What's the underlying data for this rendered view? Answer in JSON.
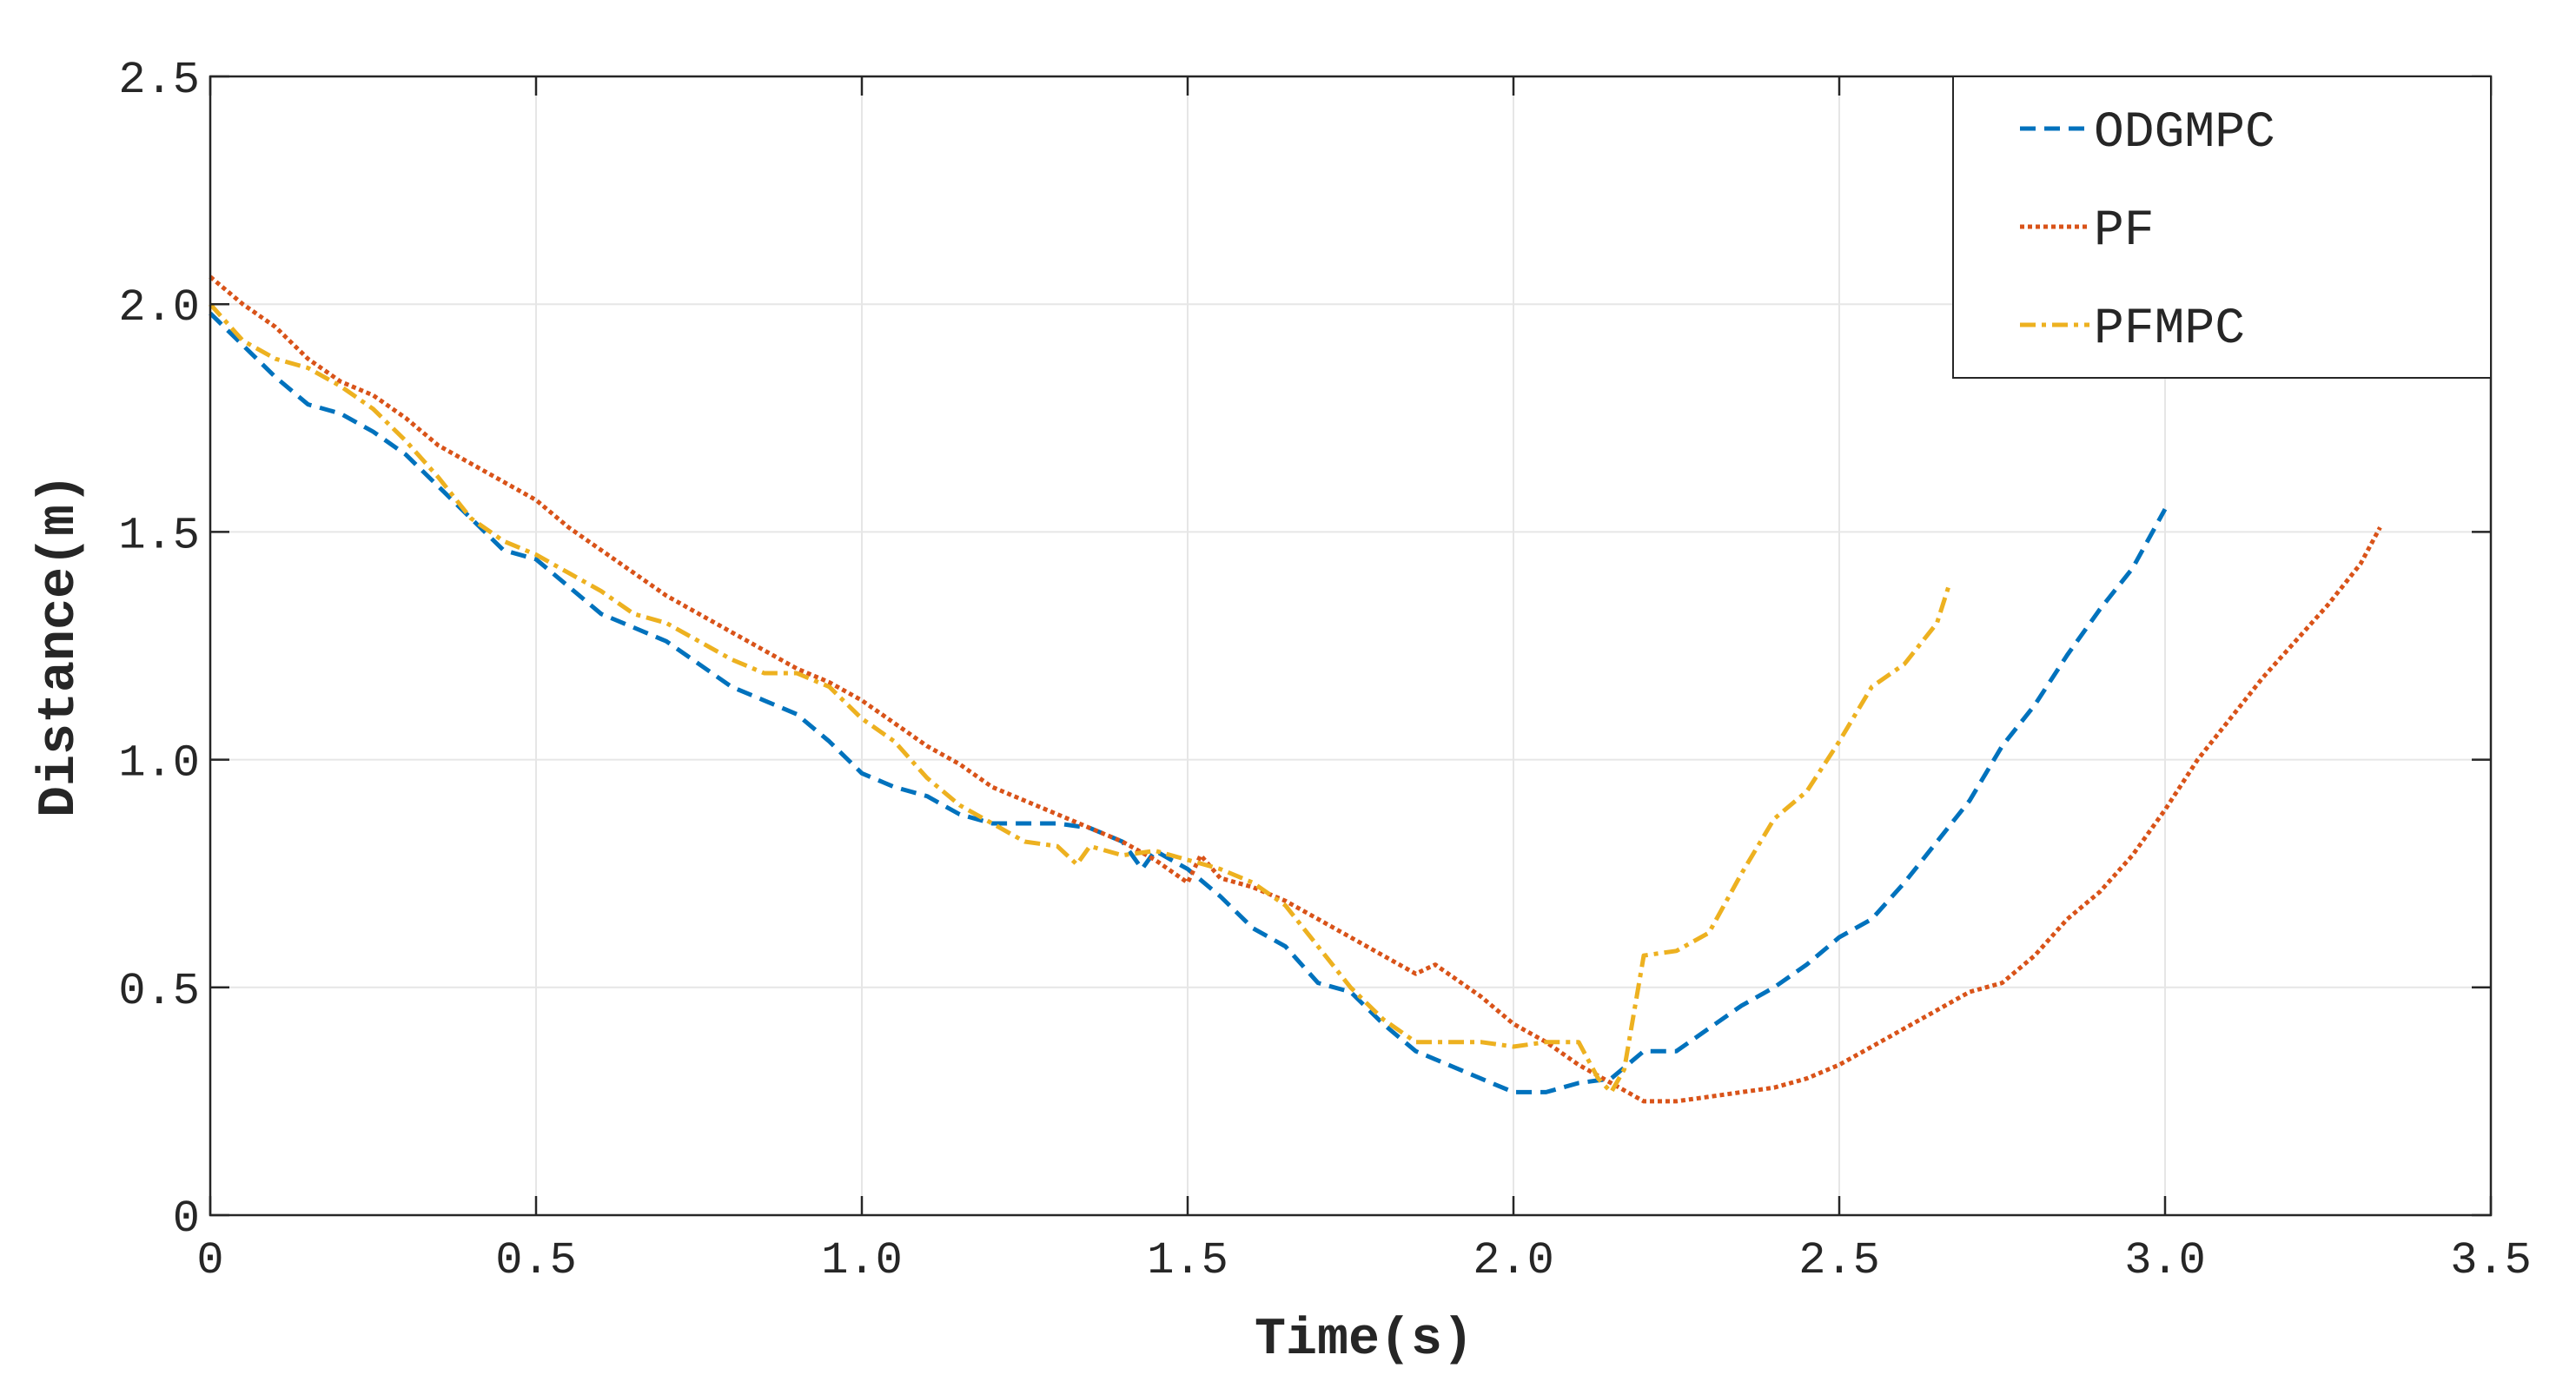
{
  "chart_data": {
    "type": "line",
    "title": "",
    "xlabel": "Time(s)",
    "ylabel": "Distance(m)",
    "xlim": [
      0,
      3.5
    ],
    "ylim": [
      0,
      2.5
    ],
    "xticks": [
      0,
      0.5,
      1.0,
      1.5,
      2.0,
      2.5,
      3.0,
      3.5
    ],
    "xtick_labels": [
      "0",
      "0.5",
      "1.0",
      "1.5",
      "2.0",
      "2.5",
      "3.0",
      "3.5"
    ],
    "yticks": [
      0,
      0.5,
      1.0,
      1.5,
      2.0,
      2.5
    ],
    "ytick_labels": [
      "0",
      "0.5",
      "1.0",
      "1.5",
      "2.0",
      "2.5"
    ],
    "grid": true,
    "legend_position": "top-right",
    "series": [
      {
        "name": "ODGMPC",
        "color": "#0072BD",
        "dash": "dashed",
        "x": [
          0,
          0.05,
          0.1,
          0.15,
          0.2,
          0.25,
          0.3,
          0.35,
          0.4,
          0.45,
          0.5,
          0.55,
          0.6,
          0.65,
          0.7,
          0.75,
          0.8,
          0.85,
          0.9,
          0.95,
          1.0,
          1.05,
          1.1,
          1.15,
          1.2,
          1.25,
          1.3,
          1.35,
          1.4,
          1.43,
          1.45,
          1.5,
          1.55,
          1.6,
          1.65,
          1.7,
          1.75,
          1.8,
          1.85,
          1.9,
          1.95,
          2.0,
          2.05,
          2.1,
          2.15,
          2.2,
          2.25,
          2.3,
          2.35,
          2.4,
          2.45,
          2.5,
          2.55,
          2.6,
          2.65,
          2.7,
          2.75,
          2.8,
          2.85,
          2.9,
          2.95,
          3.0
        ],
        "y": [
          1.98,
          1.91,
          1.84,
          1.78,
          1.76,
          1.72,
          1.67,
          1.6,
          1.53,
          1.46,
          1.44,
          1.38,
          1.32,
          1.29,
          1.26,
          1.21,
          1.16,
          1.13,
          1.1,
          1.04,
          0.97,
          0.94,
          0.92,
          0.88,
          0.86,
          0.86,
          0.86,
          0.85,
          0.82,
          0.76,
          0.8,
          0.76,
          0.7,
          0.63,
          0.59,
          0.51,
          0.49,
          0.42,
          0.36,
          0.33,
          0.3,
          0.27,
          0.27,
          0.29,
          0.3,
          0.36,
          0.36,
          0.41,
          0.46,
          0.5,
          0.55,
          0.61,
          0.65,
          0.73,
          0.82,
          0.91,
          1.03,
          1.12,
          1.23,
          1.33,
          1.42,
          1.55
        ]
      },
      {
        "name": "PF",
        "color": "#D95319",
        "dash": "dotted",
        "x": [
          0,
          0.05,
          0.1,
          0.15,
          0.2,
          0.25,
          0.3,
          0.35,
          0.4,
          0.45,
          0.5,
          0.55,
          0.6,
          0.65,
          0.7,
          0.75,
          0.8,
          0.85,
          0.9,
          0.95,
          1.0,
          1.05,
          1.1,
          1.15,
          1.2,
          1.25,
          1.3,
          1.35,
          1.4,
          1.45,
          1.5,
          1.52,
          1.55,
          1.6,
          1.65,
          1.7,
          1.75,
          1.8,
          1.85,
          1.88,
          1.9,
          1.95,
          2.0,
          2.05,
          2.1,
          2.15,
          2.2,
          2.25,
          2.3,
          2.35,
          2.4,
          2.45,
          2.5,
          2.55,
          2.6,
          2.65,
          2.7,
          2.75,
          2.8,
          2.85,
          2.9,
          2.95,
          3.0,
          3.05,
          3.1,
          3.15,
          3.2,
          3.25,
          3.3,
          3.33
        ],
        "y": [
          2.06,
          2.0,
          1.95,
          1.88,
          1.83,
          1.8,
          1.75,
          1.69,
          1.65,
          1.61,
          1.57,
          1.51,
          1.46,
          1.41,
          1.36,
          1.32,
          1.28,
          1.24,
          1.2,
          1.17,
          1.13,
          1.08,
          1.03,
          0.99,
          0.94,
          0.91,
          0.88,
          0.85,
          0.82,
          0.78,
          0.73,
          0.79,
          0.74,
          0.72,
          0.69,
          0.65,
          0.61,
          0.57,
          0.53,
          0.55,
          0.53,
          0.48,
          0.42,
          0.38,
          0.33,
          0.29,
          0.25,
          0.25,
          0.26,
          0.27,
          0.28,
          0.3,
          0.33,
          0.37,
          0.41,
          0.45,
          0.49,
          0.51,
          0.57,
          0.65,
          0.71,
          0.79,
          0.89,
          1.0,
          1.09,
          1.18,
          1.26,
          1.34,
          1.43,
          1.51
        ]
      },
      {
        "name": "PFMPC",
        "color": "#EDB120",
        "dash": "dashdot",
        "x": [
          0,
          0.05,
          0.1,
          0.15,
          0.2,
          0.25,
          0.3,
          0.35,
          0.4,
          0.45,
          0.5,
          0.55,
          0.6,
          0.65,
          0.7,
          0.75,
          0.8,
          0.85,
          0.9,
          0.95,
          1.0,
          1.05,
          1.1,
          1.15,
          1.2,
          1.25,
          1.3,
          1.33,
          1.35,
          1.4,
          1.45,
          1.5,
          1.55,
          1.6,
          1.65,
          1.7,
          1.75,
          1.8,
          1.85,
          1.9,
          1.95,
          2.0,
          2.05,
          2.1,
          2.13,
          2.15,
          2.17,
          2.2,
          2.25,
          2.3,
          2.35,
          2.4,
          2.45,
          2.5,
          2.55,
          2.6,
          2.65,
          2.67
        ],
        "y": [
          2.0,
          1.92,
          1.88,
          1.86,
          1.82,
          1.77,
          1.7,
          1.62,
          1.53,
          1.48,
          1.45,
          1.41,
          1.37,
          1.32,
          1.3,
          1.26,
          1.22,
          1.19,
          1.19,
          1.16,
          1.09,
          1.04,
          0.96,
          0.9,
          0.86,
          0.82,
          0.81,
          0.77,
          0.81,
          0.79,
          0.8,
          0.78,
          0.76,
          0.73,
          0.68,
          0.59,
          0.5,
          0.43,
          0.38,
          0.38,
          0.38,
          0.37,
          0.38,
          0.38,
          0.3,
          0.27,
          0.32,
          0.57,
          0.58,
          0.62,
          0.75,
          0.87,
          0.93,
          1.04,
          1.16,
          1.21,
          1.3,
          1.39
        ]
      }
    ]
  }
}
